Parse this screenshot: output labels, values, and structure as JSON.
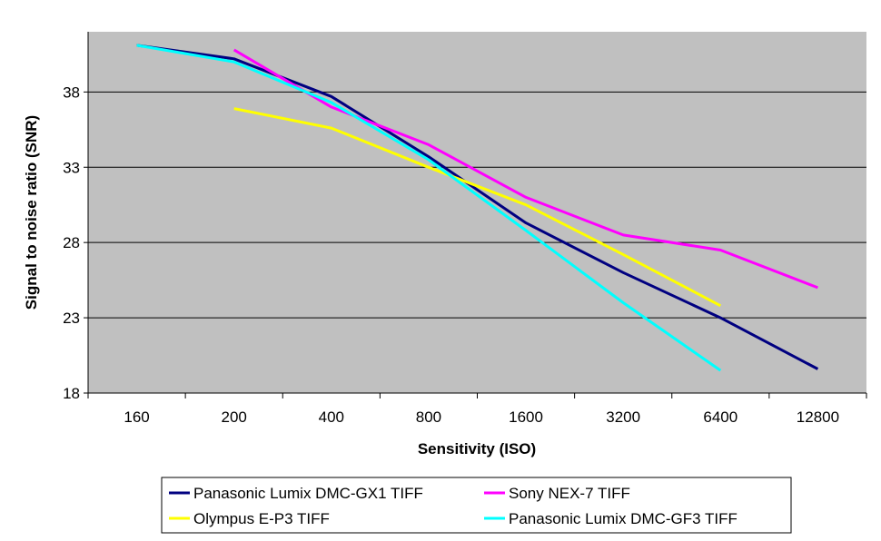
{
  "chart_data": {
    "type": "line",
    "title": "",
    "xlabel": "Sensitivity (ISO)",
    "ylabel": "Signal to noise ratio (SNR)",
    "categories": [
      "160",
      "200",
      "400",
      "800",
      "1600",
      "3200",
      "6400",
      "12800"
    ],
    "ylim": [
      18,
      42
    ],
    "yticks": [
      18,
      23,
      28,
      33,
      38
    ],
    "grid": true,
    "plot_background": "#c0c0c0",
    "legend_position": "bottom",
    "series": [
      {
        "name": "Panasonic Lumix DMC-GX1 TIFF",
        "color": "#000080",
        "values": [
          41.1,
          40.2,
          37.7,
          33.7,
          29.3,
          26.0,
          23.0,
          19.6
        ]
      },
      {
        "name": "Sony NEX-7 TIFF",
        "color": "#ff00ff",
        "values": [
          null,
          40.8,
          37.0,
          34.5,
          31.0,
          28.5,
          27.5,
          25.0
        ]
      },
      {
        "name": "Olympus E-P3 TIFF",
        "color": "#ffff00",
        "values": [
          null,
          36.9,
          35.6,
          33.0,
          30.5,
          27.2,
          23.8,
          null
        ]
      },
      {
        "name": "Panasonic Lumix DMC-GF3 TIFF",
        "color": "#00ffff",
        "values": [
          41.1,
          40.0,
          37.3,
          33.5,
          28.8,
          24.0,
          19.5,
          null
        ]
      }
    ]
  }
}
